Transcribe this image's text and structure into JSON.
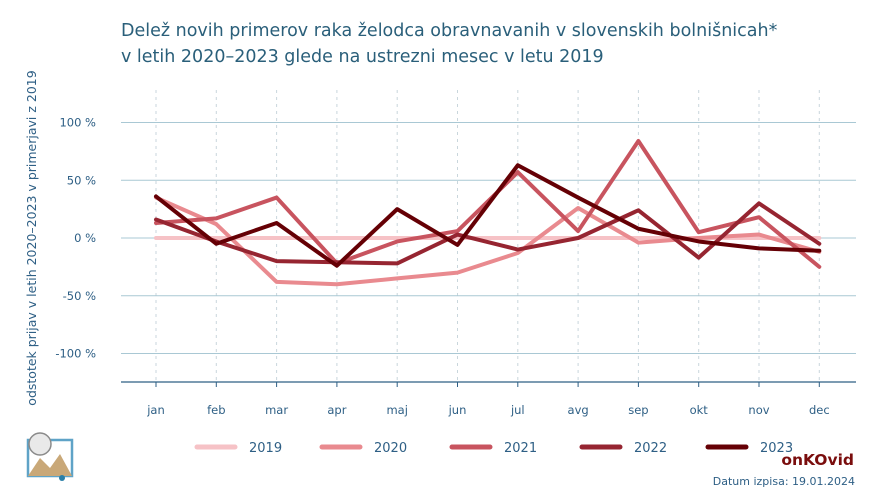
{
  "title_line1": "Delež novih primerov raka želodca obravnavanih v slovenskih bolnišnicah*",
  "title_line2": "v letih 2020–2023 glede na ustrezni mesec v letu 2019",
  "brand": "onKOvid",
  "date_text": "Datum izpisa: 19.01.2024",
  "colors": {
    "grid": "#a9c8d4",
    "axis": "#2e5f85",
    "title": "#2a5f7a"
  },
  "chart_data": {
    "type": "line",
    "title": "Delež novih primerov raka želodca obravnavanih v slovenskih bolnišnicah* v letih 2020–2023 glede na ustrezni mesec v letu 2019",
    "xlabel": "",
    "ylabel": "odstotek prijav v letih 2020–2023 v primerjavi z 2019",
    "categories": [
      "jan",
      "feb",
      "mar",
      "apr",
      "maj",
      "jun",
      "jul",
      "avg",
      "sep",
      "okt",
      "nov",
      "dec"
    ],
    "yticks": [
      100,
      50,
      0,
      -50,
      -100
    ],
    "ytick_labels": [
      "100 %",
      "50 %",
      "0 %",
      "-50 %",
      "-100 %"
    ],
    "ylim": [
      -125,
      125
    ],
    "grid": true,
    "legend_position": "bottom",
    "series": [
      {
        "name": "2019",
        "color": "#f6c2c6",
        "values": [
          0,
          0,
          0,
          0,
          0,
          0,
          0,
          0,
          0,
          0,
          0,
          0
        ]
      },
      {
        "name": "2020",
        "color": "#e98a8f",
        "values": [
          35,
          12,
          -38,
          -40,
          -35,
          -30,
          -13,
          26,
          -4,
          0,
          3,
          -12
        ]
      },
      {
        "name": "2021",
        "color": "#c8545f",
        "values": [
          13,
          17,
          35,
          -22,
          -3,
          6,
          57,
          6,
          84,
          5,
          18,
          -25
        ]
      },
      {
        "name": "2022",
        "color": "#962531",
        "values": [
          16,
          -3,
          -20,
          -21,
          -22,
          3,
          -10,
          0,
          24,
          -17,
          30,
          -5
        ]
      },
      {
        "name": "2023",
        "color": "#650005",
        "values": [
          36,
          -5,
          13,
          -24,
          25,
          -6,
          63,
          35,
          8,
          -3,
          -9,
          -11
        ]
      }
    ]
  }
}
